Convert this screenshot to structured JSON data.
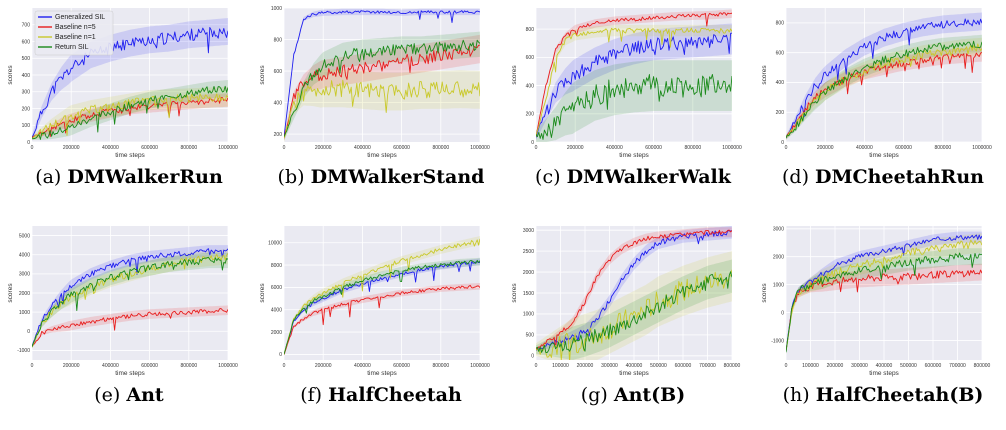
{
  "colors": {
    "generalized": "#1f1ff0",
    "baseline5": "#e81c1c",
    "baseline1": "#c9c92a",
    "return": "#1a8a1a",
    "plot_bg": "#eaeaf2",
    "grid": "#ffffff"
  },
  "legend_placement": "top-left (panel a only)",
  "chart_data": [
    {
      "id": "a",
      "label": "(a)",
      "name": "DMWalkerRun",
      "type": "line",
      "xlabel": "time steps",
      "ylabel": "scores",
      "xlim": [
        0,
        1000000
      ],
      "ylim": [
        0,
        800
      ],
      "xticks": [
        0,
        200000,
        400000,
        600000,
        800000,
        1000000
      ],
      "xtick_labels": [
        "0",
        "200000",
        "400000",
        "600000",
        "800000",
        "1000000"
      ],
      "yticks": [
        0,
        100,
        200,
        300,
        400,
        500,
        600,
        700
      ],
      "ytick_labels": [
        "0",
        "100",
        "200",
        "300",
        "400",
        "500",
        "600",
        "700"
      ],
      "legend": [
        "Generalized SIL",
        "Baseline n=5",
        "Baseline n=1",
        "Return SIL"
      ],
      "x": [
        0,
        50000,
        100000,
        150000,
        200000,
        300000,
        400000,
        500000,
        600000,
        700000,
        800000,
        900000,
        1000000
      ],
      "series": [
        {
          "name": "Generalized SIL",
          "values": [
            25,
            180,
            300,
            380,
            440,
            520,
            560,
            590,
            610,
            620,
            640,
            650,
            660
          ],
          "band": 80
        },
        {
          "name": "Baseline n=5",
          "values": [
            25,
            50,
            80,
            110,
            130,
            160,
            185,
            205,
            215,
            225,
            235,
            245,
            250
          ],
          "band": 40
        },
        {
          "name": "Baseline n=1",
          "values": [
            25,
            60,
            100,
            130,
            160,
            190,
            210,
            230,
            250,
            255,
            260,
            265,
            270
          ],
          "band": 60
        },
        {
          "name": "Return SIL",
          "values": [
            25,
            35,
            50,
            70,
            90,
            140,
            180,
            220,
            250,
            270,
            290,
            310,
            320
          ],
          "band": 50
        }
      ]
    },
    {
      "id": "b",
      "label": "(b)",
      "name": "DMWalkerStand",
      "type": "line",
      "xlabel": "time steps",
      "ylabel": "scores",
      "xlim": [
        0,
        1000000
      ],
      "ylim": [
        150,
        1000
      ],
      "xticks": [
        0,
        200000,
        400000,
        600000,
        800000,
        1000000
      ],
      "xtick_labels": [
        "0",
        "200000",
        "400000",
        "600000",
        "800000",
        "1000000"
      ],
      "yticks": [
        200,
        400,
        600,
        800,
        1000
      ],
      "ytick_labels": [
        "200",
        "400",
        "600",
        "800",
        "1000"
      ],
      "x": [
        0,
        50000,
        100000,
        150000,
        200000,
        300000,
        400000,
        500000,
        600000,
        700000,
        800000,
        900000,
        1000000
      ],
      "series": [
        {
          "name": "Generalized SIL",
          "values": [
            180,
            700,
            930,
            960,
            970,
            975,
            975,
            975,
            970,
            975,
            975,
            975,
            975
          ],
          "band": 20
        },
        {
          "name": "Baseline n=5",
          "values": [
            180,
            430,
            520,
            560,
            580,
            600,
            620,
            640,
            660,
            680,
            700,
            720,
            740
          ],
          "band": 90
        },
        {
          "name": "Baseline n=1",
          "values": [
            180,
            380,
            460,
            480,
            490,
            490,
            480,
            470,
            470,
            480,
            480,
            485,
            480
          ],
          "band": 120
        },
        {
          "name": "Return SIL",
          "values": [
            180,
            330,
            480,
            580,
            640,
            700,
            720,
            730,
            740,
            740,
            750,
            760,
            770
          ],
          "band": 80
        }
      ]
    },
    {
      "id": "c",
      "label": "(c)",
      "name": "DMWalkerWalk",
      "type": "line",
      "xlabel": "time steps",
      "ylabel": "scores",
      "xlim": [
        0,
        1000000
      ],
      "ylim": [
        0,
        950
      ],
      "xticks": [
        0,
        200000,
        400000,
        600000,
        800000,
        1000000
      ],
      "xtick_labels": [
        "0",
        "200000",
        "400000",
        "600000",
        "800000",
        "1000000"
      ],
      "yticks": [
        0,
        200,
        400,
        600,
        800
      ],
      "ytick_labels": [
        "0",
        "200",
        "400",
        "600",
        "800"
      ],
      "x": [
        0,
        50000,
        100000,
        150000,
        200000,
        300000,
        400000,
        500000,
        600000,
        700000,
        800000,
        900000,
        1000000
      ],
      "series": [
        {
          "name": "Generalized SIL",
          "values": [
            40,
            200,
            350,
            430,
            480,
            560,
            620,
            660,
            690,
            700,
            710,
            720,
            730
          ],
          "band": 110
        },
        {
          "name": "Baseline n=5",
          "values": [
            40,
            400,
            650,
            750,
            800,
            840,
            860,
            870,
            880,
            890,
            895,
            900,
            910
          ],
          "band": 30
        },
        {
          "name": "Baseline n=1",
          "values": [
            40,
            300,
            600,
            720,
            760,
            780,
            790,
            790,
            790,
            790,
            790,
            790,
            790
          ],
          "band": 40
        },
        {
          "name": "Return SIL",
          "values": [
            40,
            80,
            130,
            200,
            250,
            330,
            370,
            390,
            400,
            400,
            400,
            400,
            400
          ],
          "band": 180
        }
      ]
    },
    {
      "id": "d",
      "label": "(d)",
      "name": "DMCheetahRun",
      "type": "line",
      "xlabel": "time steps",
      "ylabel": "scores",
      "xlim": [
        0,
        1000000
      ],
      "ylim": [
        0,
        900
      ],
      "xticks": [
        0,
        200000,
        400000,
        600000,
        800000,
        1000000
      ],
      "xtick_labels": [
        "0",
        "200000",
        "400000",
        "600000",
        "800000",
        "1000000"
      ],
      "yticks": [
        0,
        200,
        400,
        600,
        800
      ],
      "ytick_labels": [
        "0",
        "200",
        "400",
        "600",
        "800"
      ],
      "x": [
        0,
        50000,
        100000,
        150000,
        200000,
        300000,
        400000,
        500000,
        600000,
        700000,
        800000,
        900000,
        1000000
      ],
      "series": [
        {
          "name": "Generalized SIL",
          "values": [
            30,
            150,
            280,
            380,
            450,
            560,
            640,
            700,
            740,
            770,
            790,
            800,
            810
          ],
          "band": 60
        },
        {
          "name": "Baseline n=5",
          "values": [
            30,
            120,
            220,
            300,
            350,
            420,
            470,
            500,
            530,
            550,
            570,
            580,
            590
          ],
          "band": 50
        },
        {
          "name": "Baseline n=1",
          "values": [
            30,
            110,
            200,
            280,
            340,
            420,
            480,
            530,
            560,
            590,
            610,
            630,
            640
          ],
          "band": 60
        },
        {
          "name": "Return SIL",
          "values": [
            30,
            100,
            190,
            270,
            340,
            430,
            500,
            550,
            590,
            620,
            640,
            650,
            660
          ],
          "band": 60
        }
      ]
    },
    {
      "id": "e",
      "label": "(e)",
      "name": "Ant",
      "type": "line",
      "xlabel": "time steps",
      "ylabel": "scores",
      "xlim": [
        0,
        1000000
      ],
      "ylim": [
        -1500,
        5500
      ],
      "xticks": [
        0,
        200000,
        400000,
        600000,
        800000,
        1000000
      ],
      "xtick_labels": [
        "0",
        "200000",
        "400000",
        "600000",
        "800000",
        "1000000"
      ],
      "yticks": [
        -1000,
        0,
        1000,
        2000,
        3000,
        4000,
        5000
      ],
      "ytick_labels": [
        "-1000",
        "0",
        "1000",
        "2000",
        "3000",
        "4000",
        "5000"
      ],
      "x": [
        0,
        50000,
        100000,
        150000,
        200000,
        300000,
        400000,
        500000,
        600000,
        700000,
        800000,
        900000,
        1000000
      ],
      "series": [
        {
          "name": "Generalized SIL",
          "values": [
            -800,
            600,
            1300,
            1900,
            2400,
            3000,
            3400,
            3700,
            3900,
            4000,
            4100,
            4200,
            4200
          ],
          "band": 300
        },
        {
          "name": "Baseline n=5",
          "values": [
            -800,
            -100,
            100,
            200,
            300,
            500,
            650,
            800,
            900,
            950,
            1000,
            1050,
            1100
          ],
          "band": 250
        },
        {
          "name": "Baseline n=1",
          "values": [
            -800,
            400,
            1000,
            1500,
            1800,
            2300,
            2700,
            3000,
            3300,
            3500,
            3700,
            3800,
            3900
          ],
          "band": 400
        },
        {
          "name": "Return SIL",
          "values": [
            -800,
            400,
            1000,
            1500,
            1900,
            2400,
            2800,
            3100,
            3300,
            3500,
            3600,
            3700,
            3700
          ],
          "band": 400
        }
      ]
    },
    {
      "id": "f",
      "label": "(f)",
      "name": "HalfCheetah",
      "type": "line",
      "xlabel": "time steps",
      "ylabel": "scores",
      "xlim": [
        0,
        1000000
      ],
      "ylim": [
        -500,
        11500
      ],
      "xticks": [
        0,
        200000,
        400000,
        600000,
        800000,
        1000000
      ],
      "xtick_labels": [
        "0",
        "200000",
        "400000",
        "600000",
        "800000",
        "1000000"
      ],
      "yticks": [
        0,
        2000,
        4000,
        6000,
        8000,
        10000
      ],
      "ytick_labels": [
        "0",
        "2000",
        "4000",
        "6000",
        "8000",
        "10000"
      ],
      "x": [
        0,
        50000,
        100000,
        150000,
        200000,
        300000,
        400000,
        500000,
        600000,
        700000,
        800000,
        900000,
        1000000
      ],
      "series": [
        {
          "name": "Generalized SIL",
          "values": [
            0,
            3000,
            4000,
            4600,
            5000,
            5800,
            6300,
            6800,
            7200,
            7600,
            7900,
            8100,
            8300
          ],
          "band": 300
        },
        {
          "name": "Baseline n=5",
          "values": [
            0,
            2500,
            3200,
            3700,
            4000,
            4500,
            4900,
            5200,
            5500,
            5700,
            5900,
            6000,
            6100
          ],
          "band": 300
        },
        {
          "name": "Baseline n=1",
          "values": [
            0,
            3200,
            4300,
            5000,
            5500,
            6400,
            7100,
            7800,
            8400,
            8900,
            9400,
            9800,
            10200
          ],
          "band": 400
        },
        {
          "name": "Return SIL",
          "values": [
            0,
            3100,
            4100,
            4800,
            5200,
            6000,
            6600,
            7100,
            7500,
            7800,
            8000,
            8200,
            8300
          ],
          "band": 350
        }
      ]
    },
    {
      "id": "g",
      "label": "(g)",
      "name": "Ant(B)",
      "type": "line",
      "xlabel": "time steps",
      "ylabel": "scores",
      "xlim": [
        0,
        800000
      ],
      "ylim": [
        -100,
        3100
      ],
      "xticks": [
        0,
        100000,
        200000,
        300000,
        400000,
        500000,
        600000,
        700000,
        800000
      ],
      "xtick_labels": [
        "0",
        "100000",
        "200000",
        "300000",
        "400000",
        "500000",
        "600000",
        "700000",
        "800000"
      ],
      "yticks": [
        0,
        500,
        1000,
        1500,
        2000,
        2500,
        3000
      ],
      "ytick_labels": [
        "0",
        "500",
        "1000",
        "1500",
        "2000",
        "2500",
        "3000"
      ],
      "x": [
        0,
        50000,
        100000,
        150000,
        200000,
        250000,
        300000,
        350000,
        400000,
        450000,
        500000,
        600000,
        700000,
        800000
      ],
      "series": [
        {
          "name": "Generalized SIL",
          "values": [
            150,
            250,
            350,
            450,
            600,
            900,
            1300,
            1800,
            2200,
            2500,
            2700,
            2850,
            2900,
            2950
          ],
          "band": 150
        },
        {
          "name": "Baseline n=5",
          "values": [
            150,
            350,
            550,
            800,
            1300,
            1900,
            2300,
            2550,
            2700,
            2800,
            2850,
            2900,
            2950,
            2950
          ],
          "band": 120
        },
        {
          "name": "Baseline n=1",
          "values": [
            150,
            200,
            250,
            300,
            400,
            500,
            650,
            800,
            950,
            1100,
            1300,
            1550,
            1750,
            1900
          ],
          "band": 600
        },
        {
          "name": "Return SIL",
          "values": [
            150,
            200,
            250,
            300,
            380,
            480,
            600,
            750,
            900,
            1050,
            1200,
            1500,
            1750,
            1900
          ],
          "band": 400
        }
      ]
    },
    {
      "id": "h",
      "label": "(h)",
      "name": "HalfCheetah(B)",
      "type": "line",
      "xlabel": "time steps",
      "ylabel": "scores",
      "xlim": [
        0,
        800000
      ],
      "ylim": [
        -1700,
        3100
      ],
      "xticks": [
        0,
        100000,
        200000,
        300000,
        400000,
        500000,
        600000,
        700000,
        800000
      ],
      "xtick_labels": [
        "0",
        "100000",
        "200000",
        "300000",
        "400000",
        "500000",
        "600000",
        "700000",
        "800000"
      ],
      "yticks": [
        -1000,
        0,
        1000,
        2000,
        3000
      ],
      "ytick_labels": [
        "-1000",
        "0",
        "1000",
        "2000",
        "3000"
      ],
      "x": [
        0,
        25000,
        50000,
        100000,
        150000,
        200000,
        300000,
        400000,
        500000,
        600000,
        700000,
        800000
      ],
      "series": [
        {
          "name": "Generalized SIL",
          "values": [
            -1400,
            300,
            800,
            1100,
            1400,
            1700,
            2000,
            2200,
            2400,
            2600,
            2700,
            2700
          ],
          "band": 200
        },
        {
          "name": "Baseline n=5",
          "values": [
            -1400,
            200,
            700,
            950,
            1050,
            1100,
            1200,
            1250,
            1300,
            1350,
            1400,
            1450
          ],
          "band": 300
        },
        {
          "name": "Baseline n=1",
          "values": [
            -1400,
            100,
            700,
            1000,
            1200,
            1400,
            1700,
            1900,
            2100,
            2300,
            2400,
            2500
          ],
          "band": 350
        },
        {
          "name": "Return SIL",
          "values": [
            -1400,
            200,
            750,
            1000,
            1150,
            1300,
            1500,
            1650,
            1800,
            1900,
            2000,
            2000
          ],
          "band": 300
        }
      ]
    }
  ]
}
